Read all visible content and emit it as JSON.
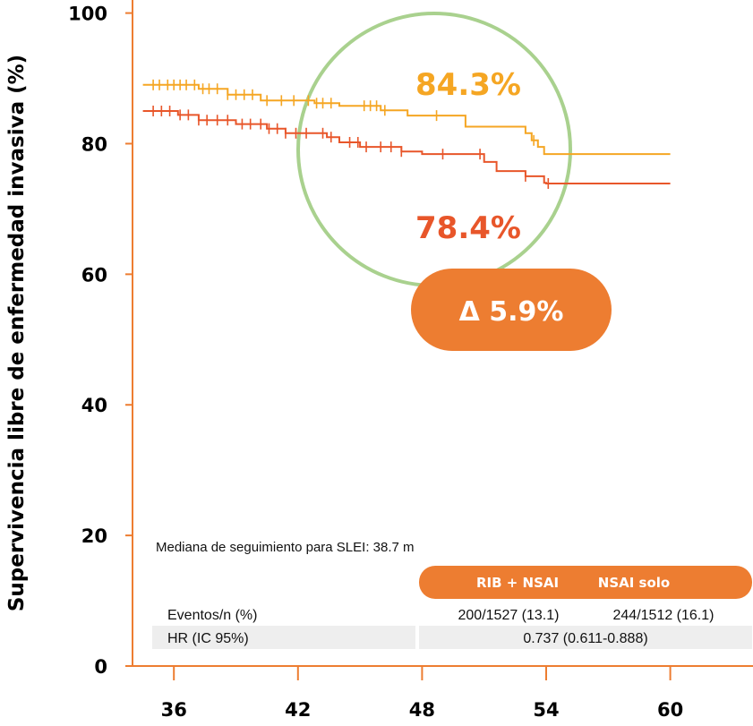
{
  "chart_data": {
    "type": "line",
    "ylabel": "Supervivencia libre de enfermedad invasiva (%)",
    "xlabel": "",
    "xlim": [
      34,
      64
    ],
    "ylim": [
      0,
      102
    ],
    "x_ticks": [
      36,
      42,
      48,
      54,
      60
    ],
    "y_ticks": [
      0,
      20,
      40,
      60,
      80,
      100
    ],
    "colors": {
      "axis": "#ED7D31",
      "highlight_circle": "#A9D18E",
      "badge": "#ED7D31",
      "table_row_bg": "#EEEEEE"
    },
    "series": [
      {
        "color": "#F5A623",
        "label": "84.3%",
        "steps": [
          [
            34.5,
            89
          ],
          [
            37.2,
            88.4
          ],
          [
            38.6,
            87.5
          ],
          [
            40.2,
            86.6
          ],
          [
            42.8,
            86.2
          ],
          [
            44.0,
            85.8
          ],
          [
            46.0,
            85.1
          ],
          [
            47.3,
            84.3
          ],
          [
            49.5,
            84.3
          ],
          [
            50.1,
            82.6
          ],
          [
            53.0,
            81.6
          ],
          [
            53.3,
            80.5
          ],
          [
            53.6,
            79.5
          ],
          [
            53.9,
            78.4
          ],
          [
            60.0,
            78.4
          ]
        ],
        "censor_x": [
          35.0,
          35.3,
          35.7,
          36.0,
          36.3,
          36.6,
          37.0,
          37.4,
          37.7,
          38.1,
          38.6,
          39.0,
          39.4,
          39.8,
          40.5,
          41.2,
          41.8,
          42.5,
          42.9,
          43.2,
          43.6,
          45.2,
          45.5,
          45.8,
          46.2,
          48.7,
          53.4
        ]
      },
      {
        "color": "#E8562A",
        "label": "78.4%",
        "steps": [
          [
            34.5,
            85
          ],
          [
            36.2,
            84.4
          ],
          [
            37.2,
            83.6
          ],
          [
            39.0,
            83.0
          ],
          [
            40.5,
            82.3
          ],
          [
            41.4,
            81.6
          ],
          [
            43.4,
            81.0
          ],
          [
            44.0,
            80.2
          ],
          [
            45.0,
            79.5
          ],
          [
            47.0,
            78.8
          ],
          [
            48.0,
            78.4
          ],
          [
            51.0,
            77.2
          ],
          [
            51.6,
            75.8
          ],
          [
            53.0,
            75.0
          ],
          [
            53.9,
            74.0
          ],
          [
            54.0,
            73.9
          ],
          [
            60.0,
            73.9
          ]
        ],
        "censor_x": [
          35.0,
          35.4,
          35.8,
          36.3,
          36.7,
          37.2,
          37.6,
          38.1,
          38.6,
          39.3,
          39.7,
          40.2,
          40.6,
          41.0,
          41.4,
          41.9,
          42.4,
          43.2,
          43.6,
          44.5,
          44.9,
          45.3,
          46.0,
          46.5,
          47.0,
          49.0,
          50.8,
          53.0,
          54.1
        ]
      }
    ]
  },
  "annotations": {
    "delta": "Δ 5.9%",
    "median_followup": "Mediana de seguimiento para SLEI: 38.7 m"
  },
  "table": {
    "headers": [
      "RIB + NSAI",
      "NSAI solo"
    ],
    "rows": [
      {
        "label": "Eventos/n (%)",
        "values": [
          "200/1527 (13.1)",
          "244/1512 (16.1)"
        ]
      },
      {
        "label": "HR (IC 95%)",
        "values": [
          "0.737 (0.611-0.888)"
        ]
      }
    ]
  }
}
